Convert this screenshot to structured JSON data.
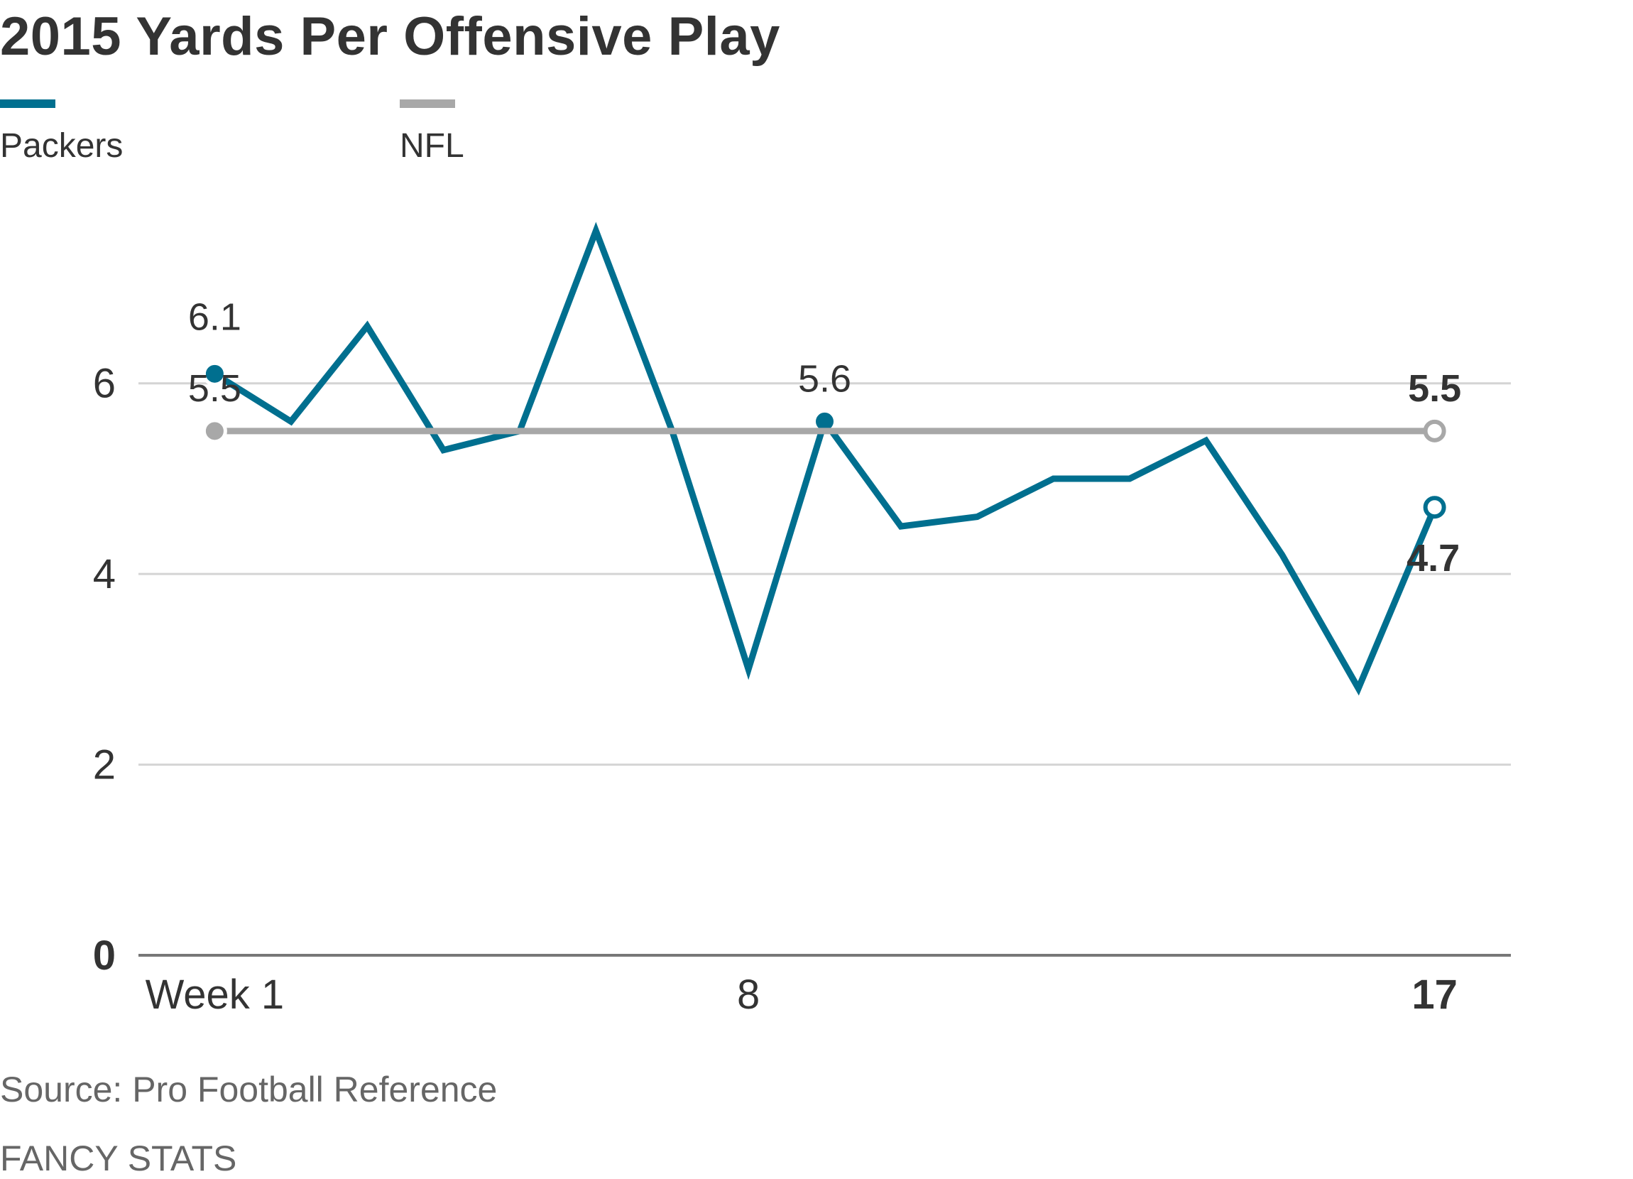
{
  "chart_data": {
    "type": "line",
    "title": "2015 Yards Per Offensive Play",
    "xlabel": "",
    "ylabel": "",
    "x": [
      1,
      2,
      3,
      4,
      5,
      6,
      7,
      8,
      9,
      10,
      11,
      12,
      13,
      14,
      15,
      16,
      17
    ],
    "xlim": [
      0,
      18
    ],
    "ylim": [
      0,
      7.6
    ],
    "x_ticks": [
      {
        "value": 1,
        "label": "Week 1",
        "bold": false
      },
      {
        "value": 8,
        "label": "8",
        "bold": false
      },
      {
        "value": 17,
        "label": "17",
        "bold": true
      }
    ],
    "y_ticks": [
      {
        "value": 0,
        "label": "0",
        "bold": true
      },
      {
        "value": 2,
        "label": "2",
        "bold": false
      },
      {
        "value": 4,
        "label": "4",
        "bold": false
      },
      {
        "value": 6,
        "label": "6",
        "bold": false
      }
    ],
    "grid": true,
    "legend": "top-left",
    "series": [
      {
        "name": "Packers",
        "color": "#006f8f",
        "values": [
          6.1,
          5.6,
          6.6,
          5.3,
          5.5,
          7.6,
          5.5,
          3.0,
          5.6,
          4.5,
          4.6,
          5.0,
          5.0,
          5.4,
          4.2,
          2.8,
          4.7
        ],
        "labels": [
          {
            "index": 0,
            "text": "6.1",
            "bold": false
          },
          {
            "index": 8,
            "text": "5.6",
            "bold": false
          },
          {
            "index": 16,
            "text": "4.7",
            "bold": true
          }
        ]
      },
      {
        "name": "NFL",
        "color": "#a8a8a8",
        "values": [
          5.5,
          5.5,
          5.5,
          5.5,
          5.5,
          5.5,
          5.5,
          5.5,
          5.5,
          5.5,
          5.5,
          5.5,
          5.5,
          5.5,
          5.5,
          5.5,
          5.5
        ],
        "labels": [
          {
            "index": 0,
            "text": "5.5",
            "bold": false
          },
          {
            "index": 16,
            "text": "5.5",
            "bold": true
          }
        ]
      }
    ],
    "source": "Source: Pro Football Reference",
    "credit": "FANCY STATS"
  }
}
